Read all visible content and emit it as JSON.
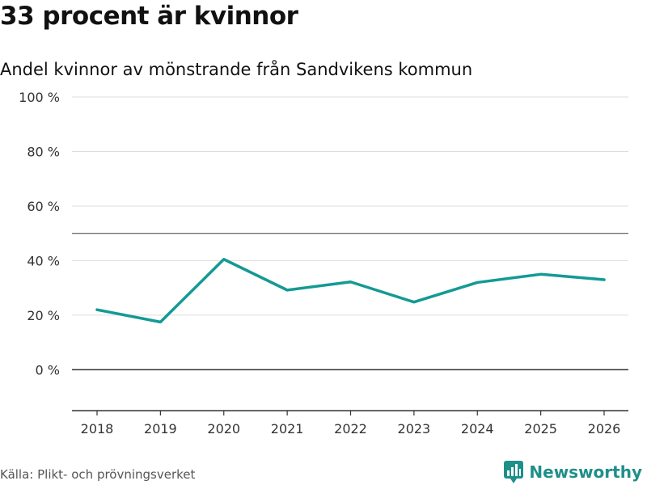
{
  "title": "33 procent är kvinnor",
  "subtitle": "Andel kvinnor av mönstrande från Sandvikens kommun",
  "source": "Källa: Plikt- och prövningsverket",
  "brand": {
    "name": "Newsworthy",
    "icon": "newsworthy-logo-icon",
    "color": "#1f8f8a"
  },
  "colors": {
    "line": "#139a94",
    "grid": "#dddddd",
    "axis": "#333333",
    "reference": "#555555"
  },
  "chart_data": {
    "type": "line",
    "title": "33 procent är kvinnor",
    "subtitle": "Andel kvinnor av mönstrande från Sandvikens kommun",
    "xlabel": "",
    "ylabel": "",
    "x": [
      2018,
      2019,
      2020,
      2021,
      2022,
      2023,
      2024,
      2025,
      2026
    ],
    "series": [
      {
        "name": "Andel kvinnor",
        "values": [
          22,
          17.5,
          40.5,
          29.2,
          32.2,
          24.8,
          32,
          35,
          33
        ]
      }
    ],
    "yticks": [
      0,
      20,
      40,
      60,
      80,
      100
    ],
    "ytick_labels": [
      "0 %",
      "20 %",
      "40 %",
      "60 %",
      "80 %",
      "100 %"
    ],
    "xtick_labels": [
      "2018",
      "2019",
      "2020",
      "2021",
      "2022",
      "2023",
      "2024",
      "2025",
      "2026"
    ],
    "ylim": [
      -15,
      100
    ],
    "reference_line": 50,
    "grid": true,
    "legend": "none"
  }
}
